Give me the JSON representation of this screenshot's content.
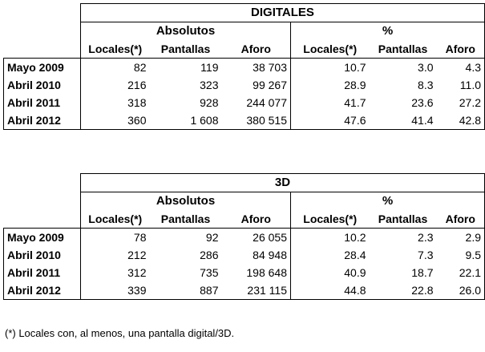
{
  "tables": [
    {
      "title": "DIGITALES",
      "group_absolutos": "Absolutos",
      "group_pct": "%",
      "columns": [
        "Locales(*)",
        "Pantallas",
        "Aforo",
        "Locales(*)",
        "Pantallas",
        "Aforo"
      ],
      "rows": [
        {
          "label": "Mayo 2009",
          "values": [
            "82",
            "119",
            "38 703",
            "10.7",
            "3.0",
            "4.3"
          ]
        },
        {
          "label": "Abril 2010",
          "values": [
            "216",
            "323",
            "99 267",
            "28.9",
            "8.3",
            "11.0"
          ]
        },
        {
          "label": "Abril 2011",
          "values": [
            "318",
            "928",
            "244 077",
            "41.7",
            "23.6",
            "27.2"
          ]
        },
        {
          "label": "Abril 2012",
          "values": [
            "360",
            "1 608",
            "380 515",
            "47.6",
            "41.4",
            "42.8"
          ]
        }
      ]
    },
    {
      "title": "3D",
      "group_absolutos": "Absolutos",
      "group_pct": "%",
      "columns": [
        "Locales(*)",
        "Pantallas",
        "Aforo",
        "Locales(*)",
        "Pantallas",
        "Aforo"
      ],
      "rows": [
        {
          "label": "Mayo 2009",
          "values": [
            "78",
            "92",
            "26 055",
            "10.2",
            "2.3",
            "2.9"
          ]
        },
        {
          "label": "Abril 2010",
          "values": [
            "212",
            "286",
            "84 948",
            "28.4",
            "7.3",
            "9.5"
          ]
        },
        {
          "label": "Abril 2011",
          "values": [
            "312",
            "735",
            "198 648",
            "40.9",
            "18.7",
            "22.1"
          ]
        },
        {
          "label": "Abril 2012",
          "values": [
            "339",
            "887",
            "231 115",
            "44.8",
            "22.8",
            "26.0"
          ]
        }
      ]
    }
  ],
  "footnote": "(*) Locales con, al menos, una pantalla digital/3D."
}
